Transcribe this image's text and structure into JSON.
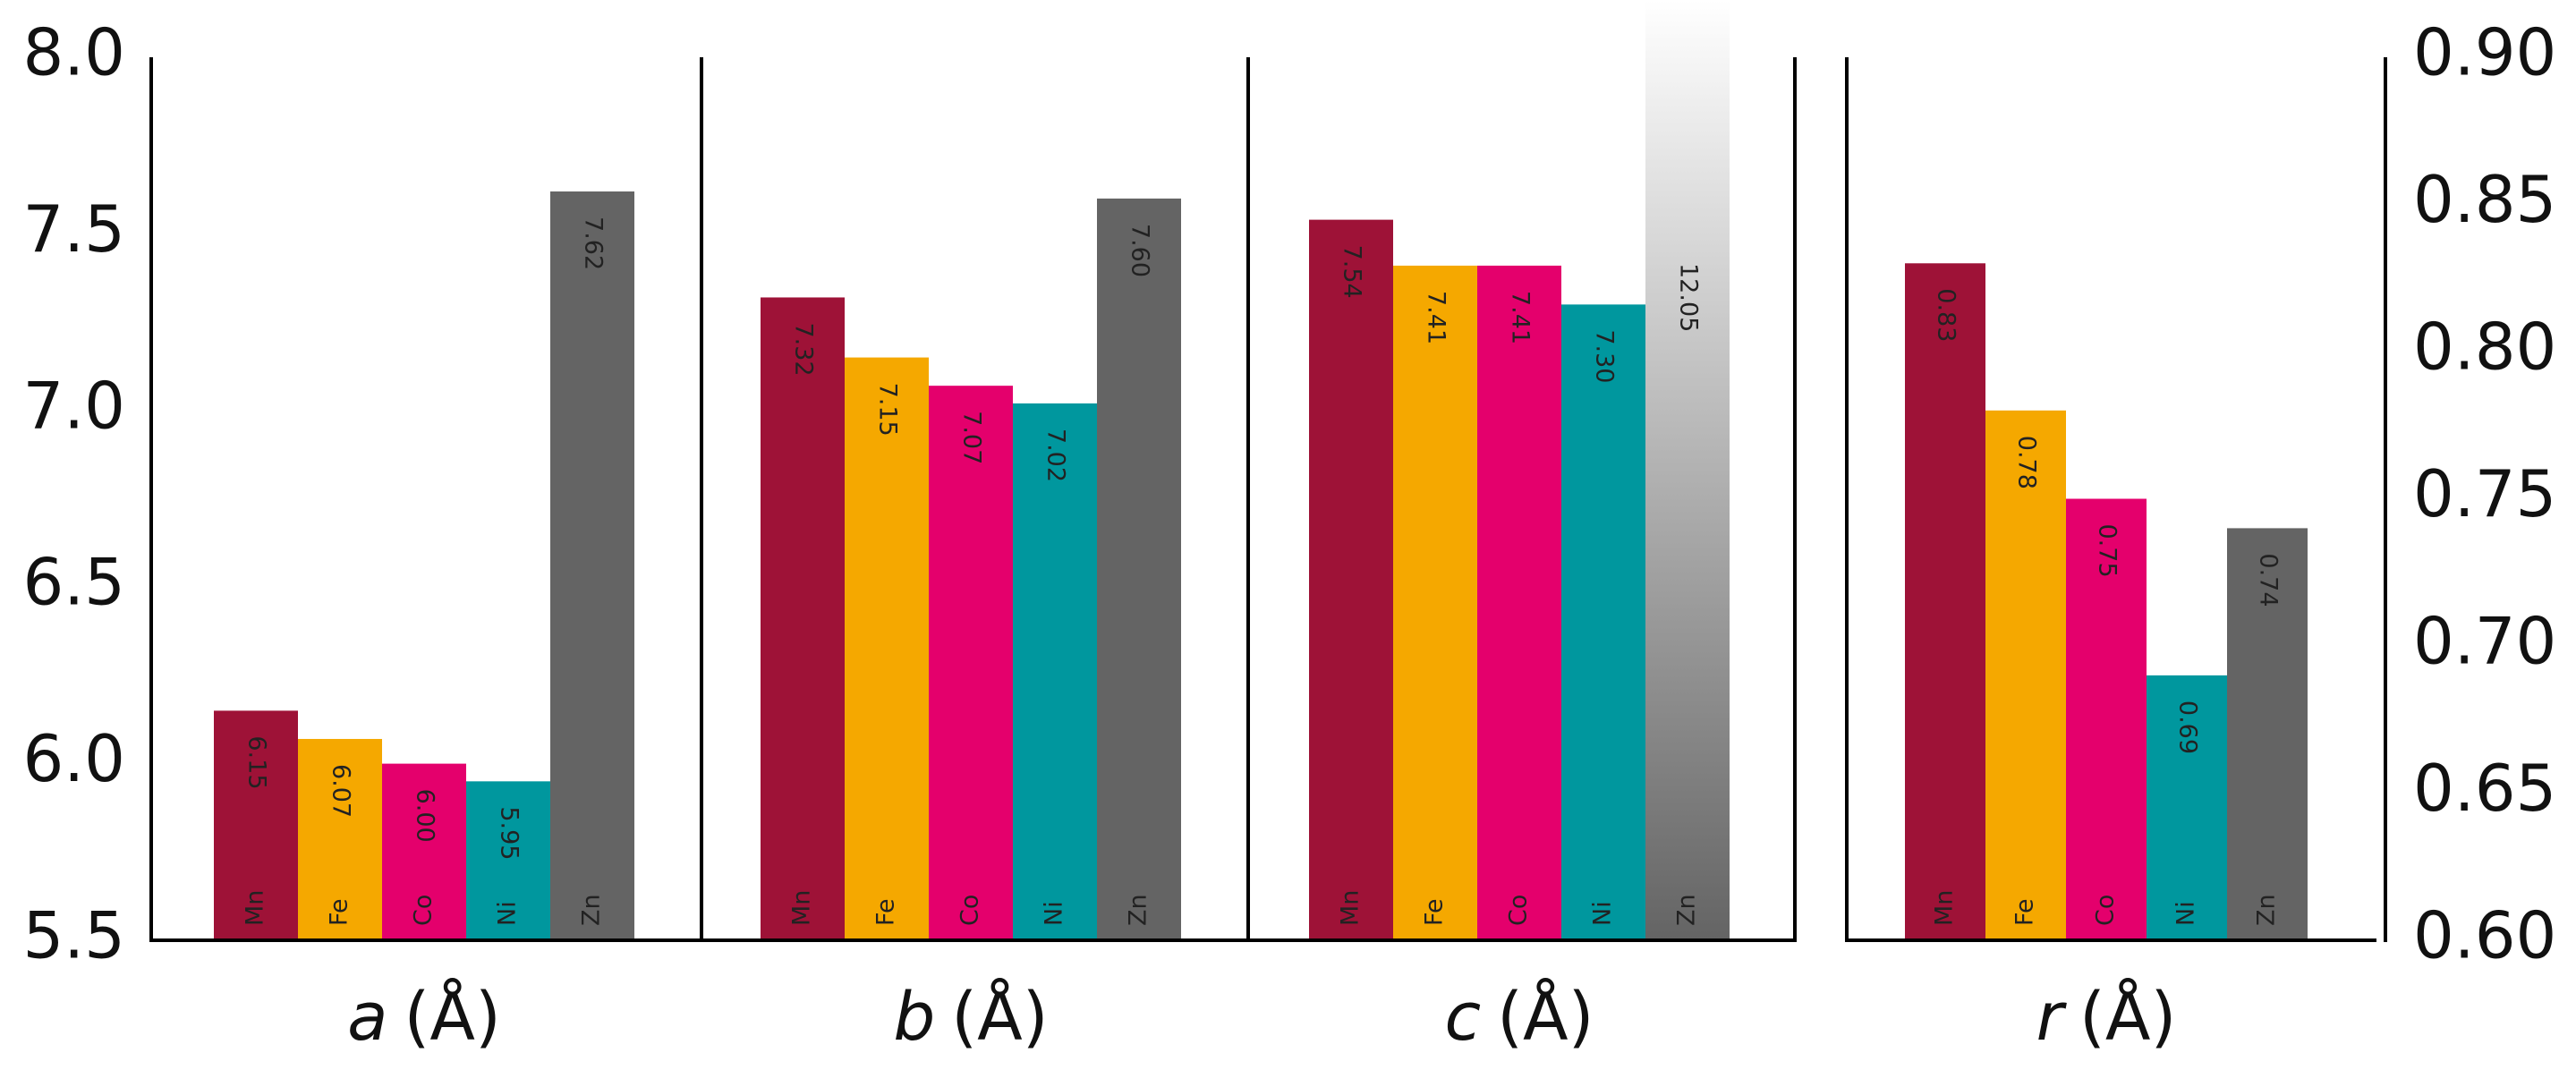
{
  "chart_data": {
    "type": "bar",
    "categories": [
      "a",
      "b",
      "c",
      "r"
    ],
    "category_unit": "(Å)",
    "axes": [
      "y",
      "y",
      "y",
      "y2"
    ],
    "series": [
      {
        "name": "Mn",
        "color": "#9e1237",
        "values": [
          6.15,
          7.32,
          7.54,
          0.83
        ],
        "value_labels": [
          "6.15",
          "7.32",
          "7.54",
          "0.83"
        ]
      },
      {
        "name": "Fe",
        "color": "#f5a800",
        "values": [
          6.07,
          7.15,
          7.41,
          0.78
        ],
        "value_labels": [
          "6.07",
          "7.15",
          "7.41",
          "0.78"
        ]
      },
      {
        "name": "Co",
        "color": "#e4006c",
        "values": [
          6.0,
          7.07,
          7.41,
          0.75
        ],
        "value_labels": [
          "6.00",
          "7.07",
          "7.41",
          "0.75"
        ]
      },
      {
        "name": "Ni",
        "color": "#00979e",
        "values": [
          5.95,
          7.02,
          7.3,
          0.69
        ],
        "value_labels": [
          "5.95",
          "7.02",
          "7.30",
          "0.69"
        ]
      },
      {
        "name": "Zn",
        "color": "#646464",
        "values": [
          7.62,
          7.6,
          12.05,
          0.74
        ],
        "value_labels": [
          "7.62",
          "7.60",
          "12.05",
          "0.74"
        ]
      }
    ],
    "ylim": [
      5.5,
      8.0
    ],
    "yticks": [
      5.5,
      {
        "value": 6,
        "label": "6.0"
      },
      6.5,
      {
        "value": 7,
        "label": "7.0"
      },
      7.5,
      {
        "value": 8,
        "label": "8.0"
      }
    ],
    "y2lim": [
      0.6,
      0.9
    ],
    "y2ticks": [
      {
        "value": 0.6,
        "label": "0.60"
      },
      0.65,
      {
        "value": 0.7,
        "label": "0.70"
      },
      0.75,
      {
        "value": 0.8,
        "label": "0.80"
      },
      0.85,
      {
        "value": 0.9,
        "label": "0.90"
      }
    ],
    "grid": false
  }
}
